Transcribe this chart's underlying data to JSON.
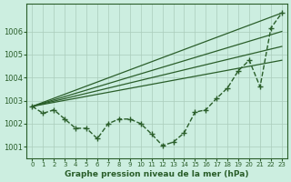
{
  "xlabel": "Graphe pression niveau de la mer (hPa)",
  "x_ticks": [
    0,
    1,
    2,
    3,
    4,
    5,
    6,
    7,
    8,
    9,
    10,
    11,
    12,
    13,
    14,
    15,
    16,
    17,
    18,
    19,
    20,
    21,
    22,
    23
  ],
  "ylim": [
    1000.5,
    1007.2
  ],
  "yticks": [
    1001,
    1002,
    1003,
    1004,
    1005,
    1006
  ],
  "background_color": "#cceee0",
  "grid_color": "#aaccbb",
  "line_color": "#2a5e2a",
  "main_series": {
    "x": [
      0,
      1,
      2,
      3,
      4,
      5,
      6,
      7,
      8,
      9,
      10,
      11,
      12,
      13,
      14,
      15,
      16,
      17,
      18,
      19,
      20,
      21,
      22,
      23
    ],
    "y": [
      1002.75,
      1002.45,
      1002.6,
      1002.2,
      1001.8,
      1001.8,
      1001.35,
      1002.0,
      1002.2,
      1002.2,
      1002.0,
      1001.55,
      1001.05,
      1001.2,
      1001.6,
      1002.5,
      1002.6,
      1003.1,
      1003.55,
      1004.3,
      1004.75,
      1003.6,
      1006.15,
      1006.8
    ]
  },
  "smooth_lines": [
    {
      "x0": 0,
      "y0": 1002.75,
      "x1": 23,
      "y1": 1006.8
    },
    {
      "x0": 0,
      "y0": 1002.75,
      "x1": 23,
      "y1": 1006.0
    },
    {
      "x0": 0,
      "y0": 1002.75,
      "x1": 23,
      "y1": 1005.35
    },
    {
      "x0": 0,
      "y0": 1002.75,
      "x1": 23,
      "y1": 1004.75
    }
  ]
}
